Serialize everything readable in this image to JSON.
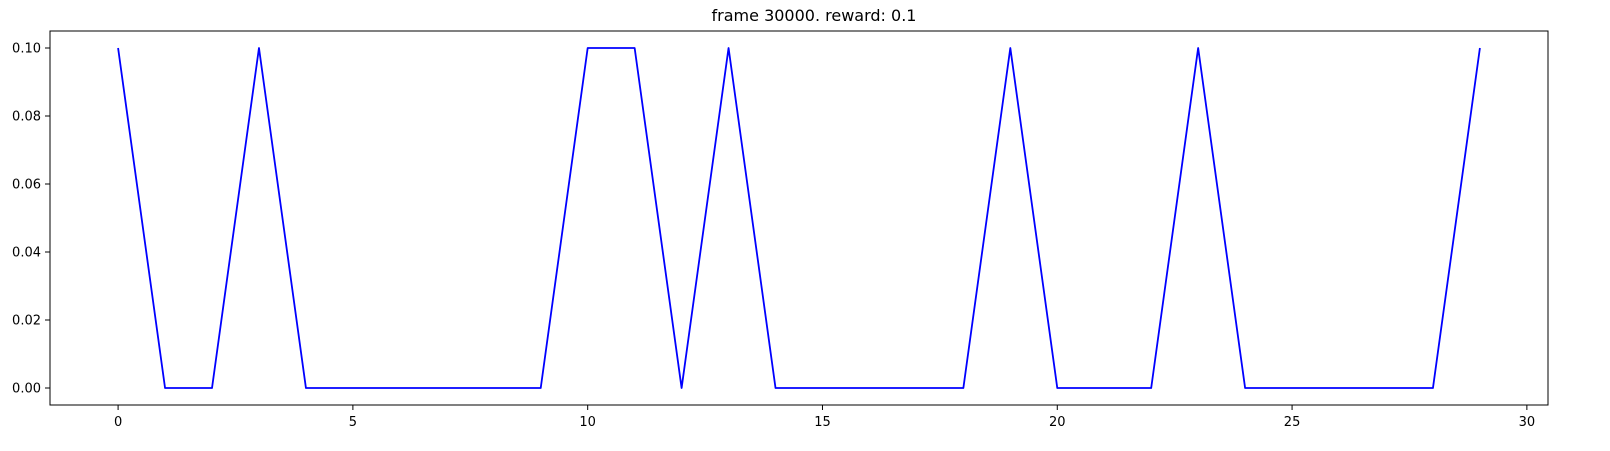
{
  "chart_data": {
    "type": "line",
    "title": "frame 30000. reward: 0.1",
    "xlabel": "",
    "ylabel": "",
    "xlim": [
      -1.45,
      30.45
    ],
    "ylim": [
      -0.005,
      0.105
    ],
    "xticks": [
      0,
      5,
      10,
      15,
      20,
      25,
      30
    ],
    "yticks": [
      0.0,
      0.02,
      0.04,
      0.06,
      0.08,
      0.1
    ],
    "xtick_labels": [
      "0",
      "5",
      "10",
      "15",
      "20",
      "25",
      "30"
    ],
    "ytick_labels": [
      "0.00",
      "0.02",
      "0.04",
      "0.06",
      "0.08",
      "0.10"
    ],
    "grid": false,
    "legend": "none",
    "series": [
      {
        "color": "#0000ff",
        "x": [
          0,
          1,
          2,
          3,
          4,
          5,
          6,
          7,
          8,
          9,
          10,
          11,
          12,
          13,
          14,
          15,
          16,
          17,
          18,
          19,
          20,
          21,
          22,
          23,
          24,
          25,
          26,
          27,
          28,
          29
        ],
        "y": [
          0.1,
          0,
          0,
          0.1,
          0,
          0,
          0,
          0,
          0,
          0,
          0.1,
          0.1,
          0,
          0.1,
          0,
          0,
          0,
          0,
          0,
          0.1,
          0,
          0,
          0,
          0.1,
          0,
          0,
          0,
          0,
          0,
          0.1
        ]
      }
    ]
  }
}
